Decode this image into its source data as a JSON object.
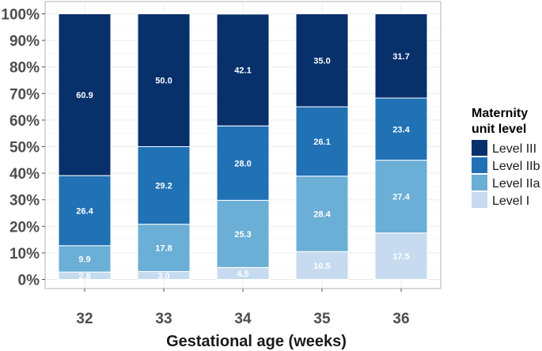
{
  "chart_data": {
    "type": "bar",
    "stacked": true,
    "categories": [
      "32",
      "33",
      "34",
      "35",
      "36"
    ],
    "xlabel": "Gestational age (weeks)",
    "ylabel": "",
    "ylim": [
      0,
      100
    ],
    "yticks": [
      "0%",
      "10%",
      "20%",
      "30%",
      "40%",
      "50%",
      "60%",
      "70%",
      "80%",
      "90%",
      "100%"
    ],
    "grid": true,
    "legend": {
      "title_lines": [
        "Maternity",
        "unit level"
      ],
      "placement": "right"
    },
    "series": [
      {
        "name": "Level I",
        "color": "#c6dbef",
        "values": [
          2.8,
          3.0,
          4.5,
          10.5,
          17.5
        ],
        "labels": [
          "2.8",
          "3.0",
          "4.5",
          "10.5",
          "17.5"
        ]
      },
      {
        "name": "Level IIa",
        "color": "#6baed6",
        "values": [
          9.9,
          17.8,
          25.3,
          28.4,
          27.4
        ],
        "labels": [
          "9.9",
          "17.8",
          "25.3",
          "28.4",
          "27.4"
        ]
      },
      {
        "name": "Level IIb",
        "color": "#2171b5",
        "values": [
          26.4,
          29.2,
          28.0,
          26.1,
          23.4
        ],
        "labels": [
          "26.4",
          "29.2",
          "28.0",
          "26.1",
          "23.4"
        ]
      },
      {
        "name": "Level III",
        "color": "#08306b",
        "values": [
          60.9,
          50.0,
          42.1,
          35.0,
          31.7
        ],
        "labels": [
          "60.9",
          "50.0",
          "42.1",
          "35.0",
          "31.7"
        ]
      }
    ]
  }
}
